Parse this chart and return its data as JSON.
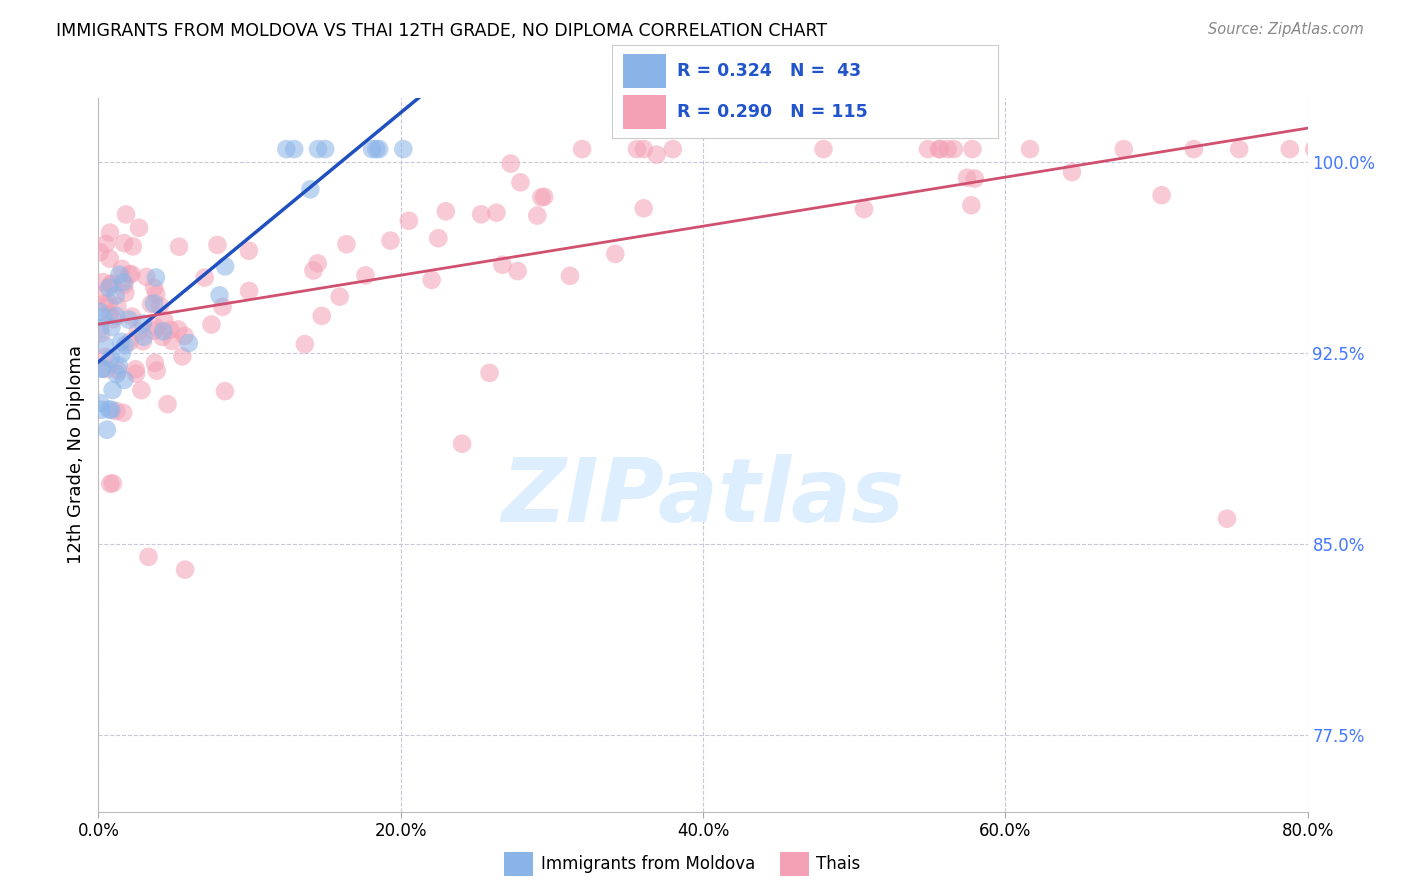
{
  "title": "IMMIGRANTS FROM MOLDOVA VS THAI 12TH GRADE, NO DIPLOMA CORRELATION CHART",
  "source": "Source: ZipAtlas.com",
  "ylabel": "12th Grade, No Diploma",
  "xlim": [
    0.0,
    0.8
  ],
  "ylim": [
    0.745,
    1.025
  ],
  "x_ticks": [
    0.0,
    0.2,
    0.4,
    0.6,
    0.8
  ],
  "x_tick_labels": [
    "0.0%",
    "20.0%",
    "40.0%",
    "60.0%",
    "80.0%"
  ],
  "y_ticks_right": [
    0.775,
    0.85,
    0.925,
    1.0
  ],
  "y_tick_labels_right": [
    "77.5%",
    "85.0%",
    "92.5%",
    "100.0%"
  ],
  "legend_labels": [
    "Immigrants from Moldova",
    "Thais"
  ],
  "r_moldova": 0.324,
  "n_moldova": 43,
  "r_thai": 0.29,
  "n_thai": 115,
  "color_moldova": "#8ab4e8",
  "color_thai": "#f4a0b5",
  "line_color_moldova": "#2050c0",
  "line_color_thai": "#d05070",
  "grid_color": "#c8c8d8",
  "background_color": "#ffffff",
  "watermark_color": "#ddeeff",
  "label_color_right": "#4477ff",
  "scatter_alpha": 0.55,
  "scatter_size": 180
}
